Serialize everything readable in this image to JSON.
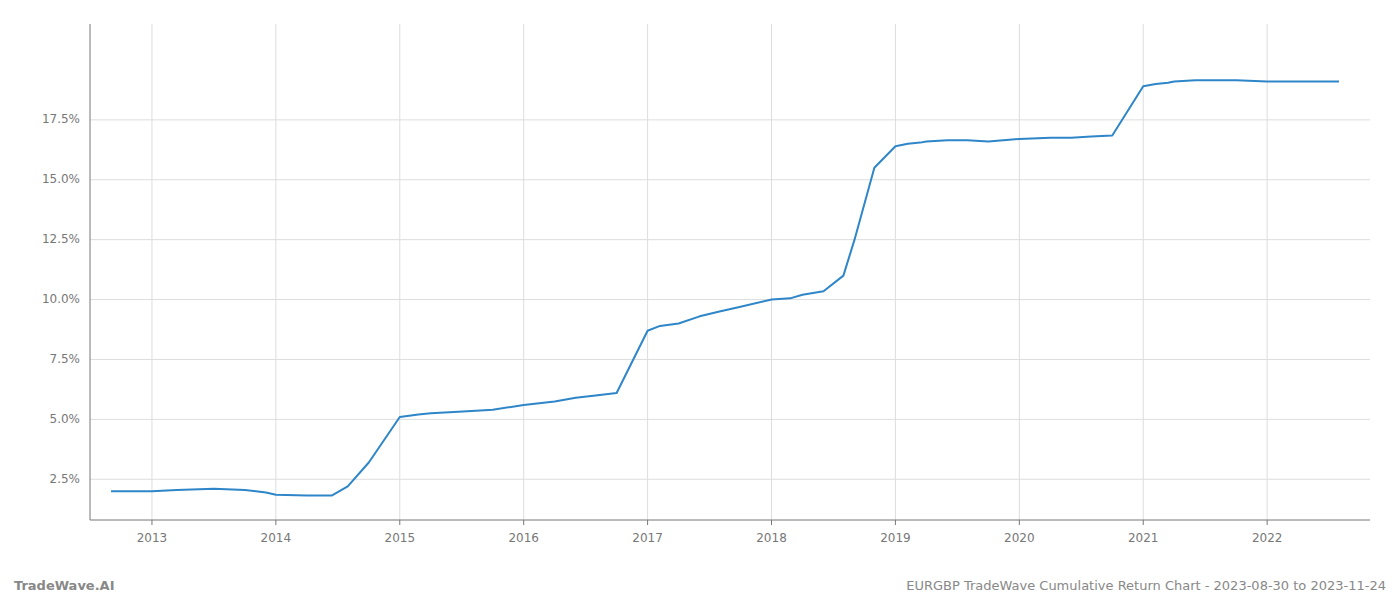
{
  "chart_data": {
    "type": "line",
    "x": [
      2012.67,
      2013.0,
      2013.2,
      2013.5,
      2013.75,
      2013.92,
      2014.0,
      2014.25,
      2014.45,
      2014.58,
      2014.75,
      2015.0,
      2015.15,
      2015.25,
      2015.4,
      2015.58,
      2015.75,
      2016.0,
      2016.25,
      2016.42,
      2016.58,
      2016.75,
      2017.0,
      2017.1,
      2017.25,
      2017.42,
      2017.58,
      2017.75,
      2018.0,
      2018.15,
      2018.25,
      2018.42,
      2018.58,
      2018.67,
      2018.75,
      2018.83,
      2019.0,
      2019.1,
      2019.2,
      2019.25,
      2019.42,
      2019.58,
      2019.75,
      2020.0,
      2020.25,
      2020.42,
      2020.58,
      2020.75,
      2021.0,
      2021.1,
      2021.2,
      2021.25,
      2021.42,
      2021.58,
      2021.75,
      2022.0,
      2022.25,
      2022.58
    ],
    "values": [
      2.0,
      2.0,
      2.05,
      2.1,
      2.05,
      1.95,
      1.85,
      1.82,
      1.82,
      2.2,
      3.2,
      5.1,
      5.2,
      5.25,
      5.3,
      5.35,
      5.4,
      5.6,
      5.75,
      5.9,
      6.0,
      6.1,
      8.7,
      8.9,
      9.0,
      9.3,
      9.5,
      9.7,
      10.0,
      10.05,
      10.2,
      10.35,
      11.0,
      12.5,
      14.0,
      15.5,
      16.4,
      16.5,
      16.55,
      16.6,
      16.65,
      16.65,
      16.6,
      16.7,
      16.75,
      16.75,
      16.8,
      16.85,
      18.9,
      19.0,
      19.05,
      19.1,
      19.15,
      19.15,
      19.15,
      19.1,
      19.1,
      19.1
    ],
    "color": "#2e86c8",
    "xlim": [
      2012.5,
      2022.83
    ],
    "xticks": [
      2013,
      2014,
      2015,
      2016,
      2017,
      2018,
      2019,
      2020,
      2021,
      2022
    ],
    "ylim": [
      0.8,
      21.5
    ],
    "yticks": [
      {
        "value": 2.5,
        "label": "2.5%"
      },
      {
        "value": 5.0,
        "label": "5.0%"
      },
      {
        "value": 7.5,
        "label": "7.5%"
      },
      {
        "value": 10.0,
        "label": "10.0%"
      },
      {
        "value": 12.5,
        "label": "12.5%"
      },
      {
        "value": 15.0,
        "label": "15.0%"
      },
      {
        "value": 17.5,
        "label": "17.5%"
      }
    ],
    "grid": true,
    "annotations": [
      "TradeWave.AI",
      "EURGBP TradeWave Cumulative Return Chart - 2023-08-30 to 2023-11-24"
    ]
  }
}
